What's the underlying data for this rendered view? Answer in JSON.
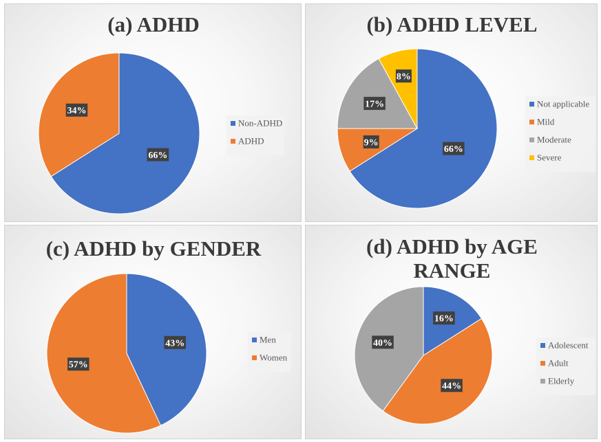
{
  "chart_data": [
    {
      "type": "pie",
      "title": "(a) ADHD",
      "slices": [
        {
          "name": "Non-ADHD",
          "value": 66,
          "label": "66%",
          "color": "#4472C4"
        },
        {
          "name": "ADHD",
          "value": 34,
          "label": "34%",
          "color": "#ED7D31"
        }
      ],
      "legend": [
        "Non-ADHD",
        "ADHD"
      ],
      "legend_position": "right"
    },
    {
      "type": "pie",
      "title": "(b) ADHD LEVEL",
      "slices": [
        {
          "name": "Not applicable",
          "value": 66,
          "label": "66%",
          "color": "#4472C4"
        },
        {
          "name": "Mild",
          "value": 9,
          "label": "9%",
          "color": "#ED7D31"
        },
        {
          "name": "Moderate",
          "value": 17,
          "label": "17%",
          "color": "#A5A5A5"
        },
        {
          "name": "Severe",
          "value": 8,
          "label": "8%",
          "color": "#FFC000"
        }
      ],
      "legend": [
        "Not applicable",
        "Mild",
        "Moderate",
        "Severe"
      ],
      "legend_position": "right"
    },
    {
      "type": "pie",
      "title": "(c) ADHD by GENDER",
      "slices": [
        {
          "name": "Men",
          "value": 43,
          "label": "43%",
          "color": "#4472C4"
        },
        {
          "name": "Women",
          "value": 57,
          "label": "57%",
          "color": "#ED7D31"
        }
      ],
      "legend": [
        "Men",
        "Women"
      ],
      "legend_position": "right"
    },
    {
      "type": "pie",
      "title": "(d) ADHD by AGE RANGE",
      "title_lines": [
        "(d) ADHD by AGE",
        "RANGE"
      ],
      "slices": [
        {
          "name": "Adolescent",
          "value": 16,
          "label": "16%",
          "color": "#4472C4"
        },
        {
          "name": "Adult",
          "value": 44,
          "label": "44%",
          "color": "#ED7D31"
        },
        {
          "name": "Elderly",
          "value": 40,
          "label": "40%",
          "color": "#A5A5A5"
        }
      ],
      "legend": [
        "Adolescent",
        "Adult",
        "Elderly"
      ],
      "legend_position": "right"
    }
  ]
}
